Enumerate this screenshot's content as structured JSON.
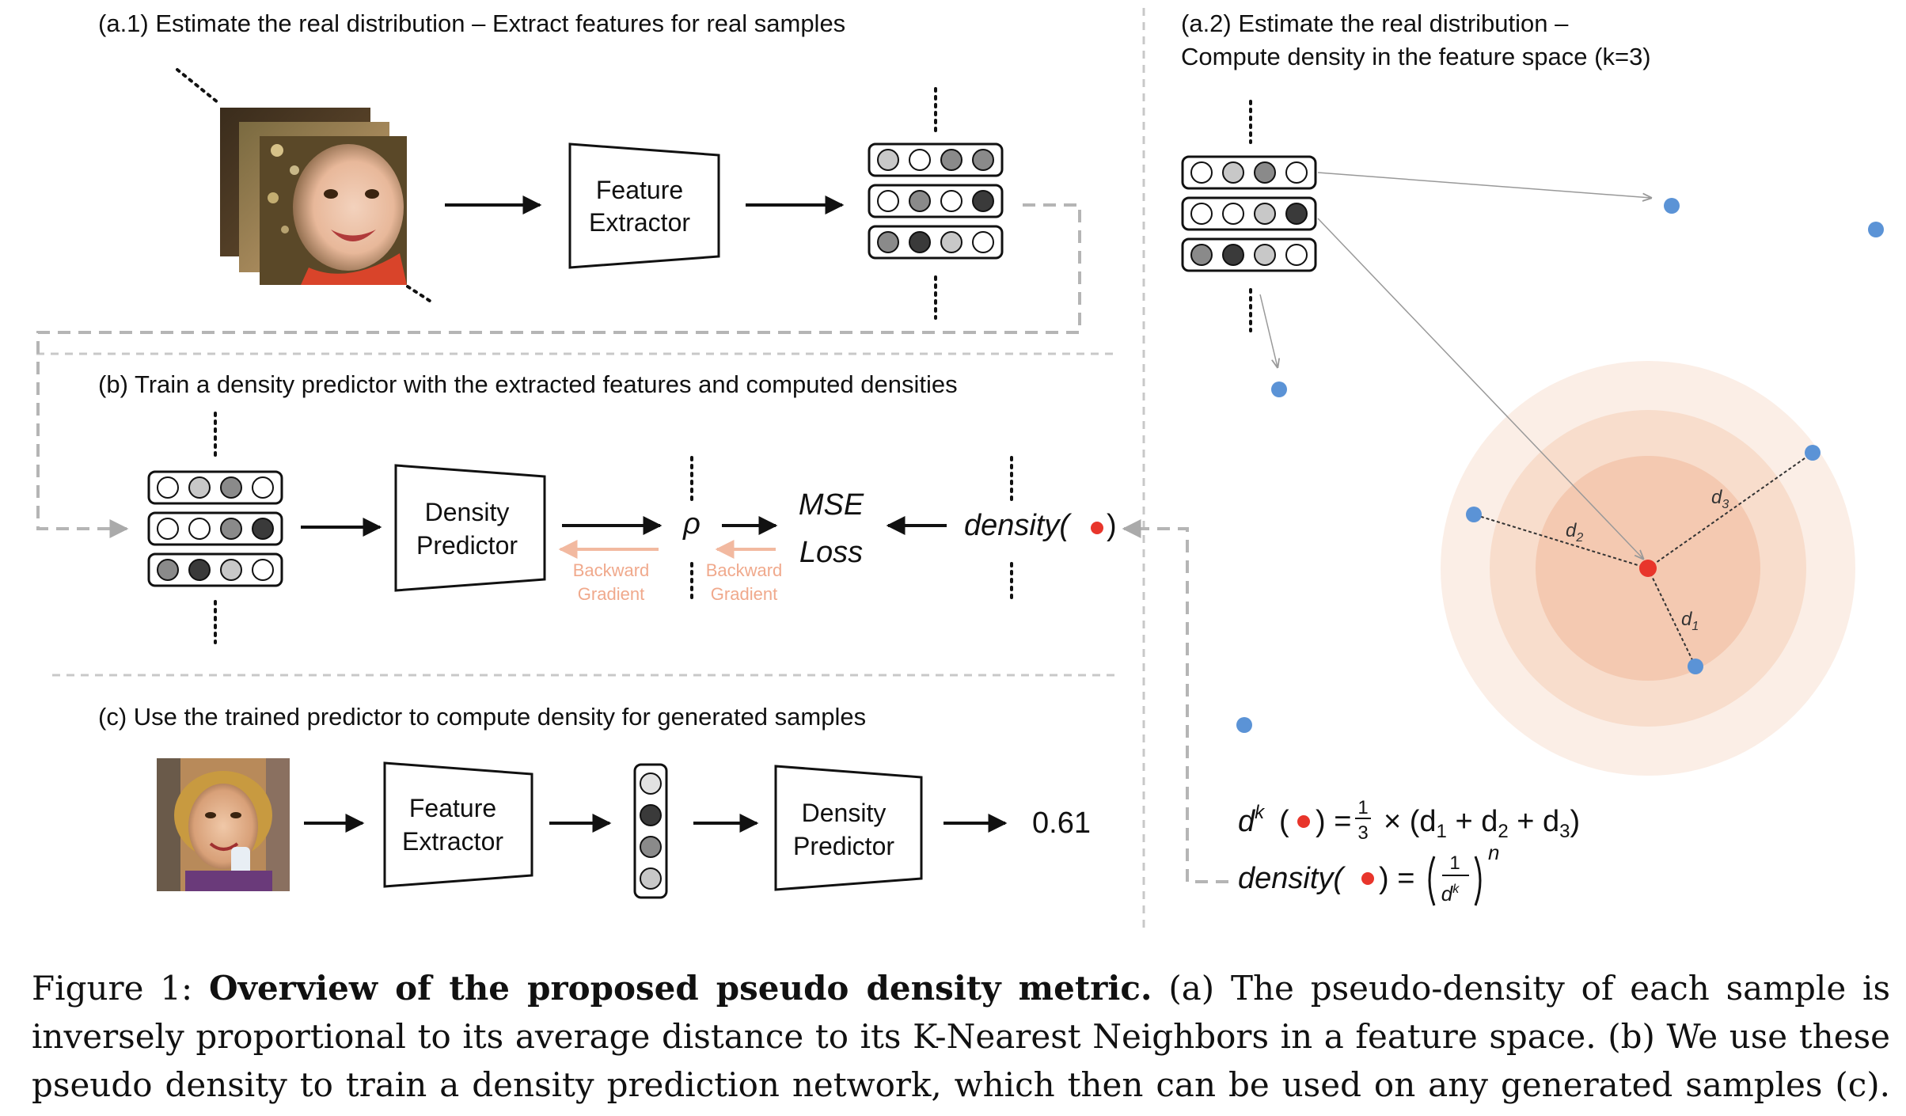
{
  "panels": {
    "a1_title": "(a.1) Estimate the real distribution – Extract features for real samples",
    "a2_title_line1": "(a.2) Estimate the real distribution –",
    "a2_title_line2": "Compute density in the feature space (k=3)",
    "b_title": "(b) Train a density predictor with the extracted features and computed densities",
    "c_title": "(c) Use the trained predictor to compute density for generated samples"
  },
  "blocks": {
    "feature_extractor_line1": "Feature",
    "feature_extractor_line2": "Extractor",
    "density_predictor_line1": "Density",
    "density_predictor_line2": "Predictor"
  },
  "train": {
    "rho": "ρ",
    "mse_line1": "MSE",
    "mse_line2": "Loss",
    "density_label": "density(",
    "close_paren": ")",
    "backward_line1": "Backward",
    "backward_line2": "Gradient"
  },
  "output_value": "0.61",
  "distances": {
    "d1": "d",
    "d2": "d",
    "d3": "d",
    "sub1": "1",
    "sub2": "2",
    "sub3": "3"
  },
  "formula": {
    "dk": "d",
    "k_sup": "k",
    "eq": ") =",
    "open_paren": "(",
    "one": "1",
    "three": "3",
    "times_sum": "× (d",
    "plus_d2": " + d",
    "plus_d3": " + d",
    "end_paren": ")",
    "s1": "1",
    "s2": "2",
    "s3": "3",
    "density_prefix": "density(",
    "density_eq": ") =",
    "frac_num": "1",
    "frac_den": "d",
    "frac_den_sup": "k",
    "power_n": "n"
  },
  "caption": {
    "prefix": "Figure 1: ",
    "bold": "Overview of the proposed pseudo density metric.",
    "line1_rest": " (a) The pseudo-density of each sample is",
    "line2": "inversely proportional to its average distance to its K-Nearest Neighbors in a feature space. (b) We use these",
    "line3": "pseudo density to train a density prediction network, which then can be used on any generated samples (c)."
  },
  "colors": {
    "accent_red": "#e8352b",
    "point_blue": "#5b93d6",
    "gradient_arrow": "#f2b9a0",
    "dashed_line": "#b5b5b5",
    "ring_outer": "#fbeee6",
    "ring_mid": "#f8ddcc",
    "ring_inner": "#f4c9b1"
  }
}
